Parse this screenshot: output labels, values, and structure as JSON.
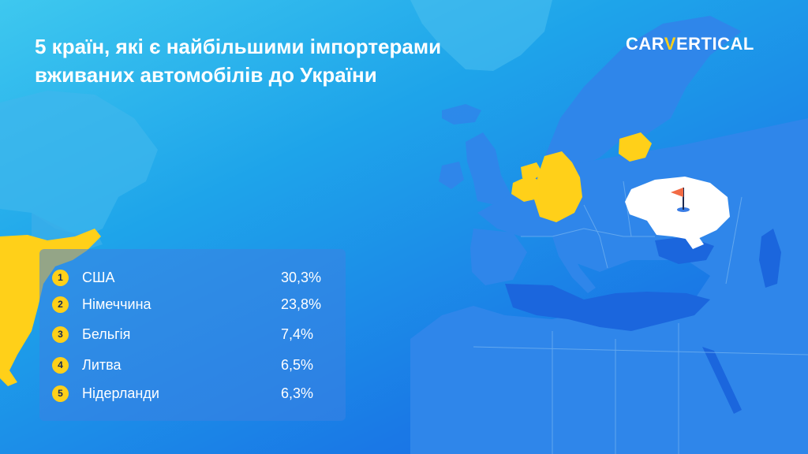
{
  "title": {
    "line1": "5 країн, які є найбільшими імпортерами",
    "line2": "вживаних автомобілів до України"
  },
  "logo": {
    "part1": "CAR",
    "part2": "V",
    "part3": "ERTICAL"
  },
  "ranking": [
    {
      "rank": "1",
      "country": "США",
      "share": "30,3%"
    },
    {
      "rank": "2",
      "country": "Німеччина",
      "share": "23,8%"
    },
    {
      "rank": "3",
      "country": "Бельгія",
      "share": "7,4%"
    },
    {
      "rank": "4",
      "country": "Литва",
      "share": "6,5%"
    },
    {
      "rank": "5",
      "country": "Нідерланди",
      "share": "6,3%"
    }
  ],
  "colors": {
    "highlight": "#ffd019",
    "destination": "#ffffff",
    "flag": "#f26b45",
    "land": "#2f86ea",
    "borders": "#6fb0f0"
  },
  "map_markers": {
    "destination_icon": "flag-icon"
  }
}
